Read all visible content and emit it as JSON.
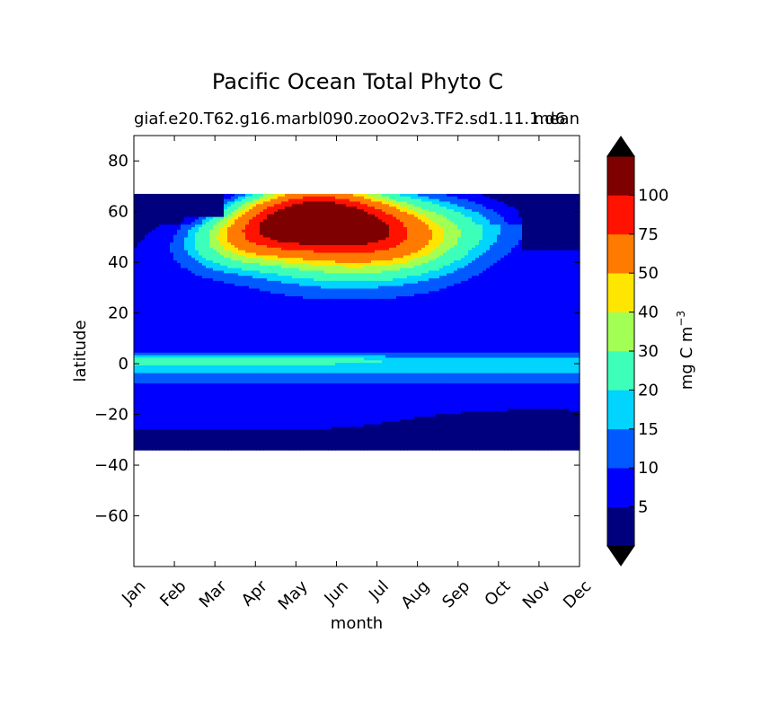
{
  "chart_data": {
    "type": "heatmap",
    "title": "Pacific Ocean Total Phyto C",
    "subtitle_left": "giaf.e20.T62.g16.marbl090.zooO2v3.TF2.sd1.11.1.d6",
    "subtitle_right": "mean",
    "xlabel": "month",
    "ylabel": "latitude",
    "x_categories": [
      "Jan",
      "Feb",
      "Mar",
      "Apr",
      "May",
      "Jun",
      "Jul",
      "Aug",
      "Sep",
      "Oct",
      "Nov",
      "Dec"
    ],
    "y_ticks": [
      {
        "value": 80,
        "label": "80"
      },
      {
        "value": 60,
        "label": "60"
      },
      {
        "value": 40,
        "label": "40"
      },
      {
        "value": 20,
        "label": "20"
      },
      {
        "value": 0,
        "label": "0"
      },
      {
        "value": -20,
        "label": "−20"
      },
      {
        "value": -40,
        "label": "−40"
      },
      {
        "value": -60,
        "label": "−60"
      }
    ],
    "ylim": [
      -80,
      90
    ],
    "data_lat_range": [
      -34,
      67
    ],
    "colorbar": {
      "label": "mg C m",
      "label_superscript": "−3",
      "levels": [
        0,
        5,
        10,
        15,
        20,
        30,
        40,
        50,
        75,
        100,
        125
      ],
      "tick_labels": [
        "5",
        "10",
        "15",
        "20",
        "30",
        "40",
        "50",
        "75",
        "100"
      ],
      "colors": [
        "#00007f",
        "#0000ff",
        "#005aff",
        "#00d4ff",
        "#3dffb9",
        "#a2ff54",
        "#ffe600",
        "#ff7a00",
        "#ff1300",
        "#7f0000"
      ],
      "extend_low_color": "#000000",
      "extend_high_color": "#000000"
    }
  }
}
